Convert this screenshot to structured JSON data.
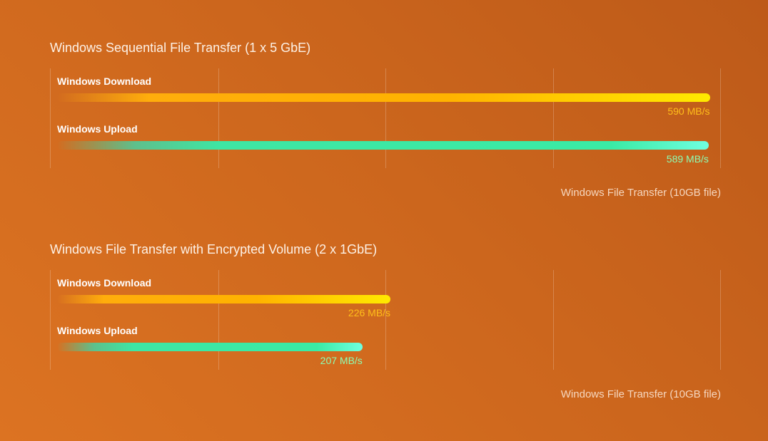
{
  "chart_data": [
    {
      "type": "bar",
      "orientation": "horizontal",
      "title": "Windows Sequential File Transfer (1 x 5 GbE)",
      "categories": [
        "Windows Download",
        "Windows Upload"
      ],
      "values": [
        590,
        589
      ],
      "value_labels": [
        "590 MB/s",
        "589 MB/s"
      ],
      "unit": "MB/s",
      "xlim": [
        0,
        600
      ],
      "grid": true,
      "footnote": "Windows File Transfer (10GB file)",
      "colors": {
        "download": "#ffb300",
        "upload": "#3ee6a4"
      }
    },
    {
      "type": "bar",
      "orientation": "horizontal",
      "title": "Windows File Transfer with Encrypted Volume (2 x 1GbE)",
      "categories": [
        "Windows Download",
        "Windows Upload"
      ],
      "values": [
        226,
        207
      ],
      "value_labels": [
        "226 MB/s",
        "207 MB/s"
      ],
      "unit": "MB/s",
      "xlim": [
        0,
        450
      ],
      "grid": true,
      "footnote": "Windows File Transfer (10GB file)",
      "colors": {
        "download": "#ffb300",
        "upload": "#3ee6a4"
      }
    }
  ]
}
